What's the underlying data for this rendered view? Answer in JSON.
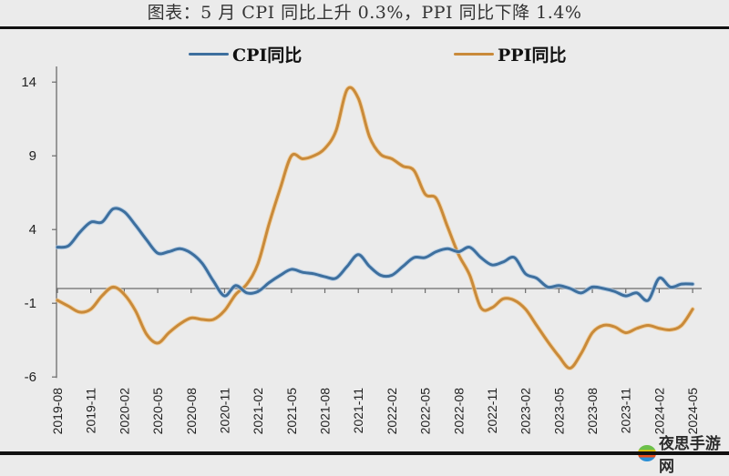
{
  "title": "图表：5 月 CPI 同比上升 0.3%，PPI 同比下降 1.4%",
  "watermark": "夜思手游网",
  "legend": [
    {
      "label": "CPI同比",
      "color": "#3d6f9e"
    },
    {
      "label": "PPI同比",
      "color": "#c98a3a"
    }
  ],
  "chart_data": {
    "type": "line",
    "title": "图表：5 月 CPI 同比上升 0.3%，PPI 同比下降 1.4%",
    "xlabel": "",
    "ylabel": "",
    "ylim": [
      -6,
      14
    ],
    "yticks": [
      14,
      9,
      4,
      -1,
      -6
    ],
    "legend_position": "top",
    "grid": false,
    "x_tick_labels": [
      "2019-08",
      "2019-11",
      "2020-02",
      "2020-05",
      "2020-08",
      "2020-11",
      "2021-02",
      "2021-05",
      "2021-08",
      "2021-11",
      "2022-02",
      "2022-05",
      "2022-08",
      "2022-11",
      "2023-02",
      "2023-05",
      "2023-08",
      "2023-11",
      "2024-02",
      "2024-05"
    ],
    "x": [
      "2019-08",
      "2019-09",
      "2019-10",
      "2019-11",
      "2019-12",
      "2020-01",
      "2020-02",
      "2020-03",
      "2020-04",
      "2020-05",
      "2020-06",
      "2020-07",
      "2020-08",
      "2020-09",
      "2020-10",
      "2020-11",
      "2020-12",
      "2021-01",
      "2021-02",
      "2021-03",
      "2021-04",
      "2021-05",
      "2021-06",
      "2021-07",
      "2021-08",
      "2021-09",
      "2021-10",
      "2021-11",
      "2021-12",
      "2022-01",
      "2022-02",
      "2022-03",
      "2022-04",
      "2022-05",
      "2022-06",
      "2022-07",
      "2022-08",
      "2022-09",
      "2022-10",
      "2022-11",
      "2022-12",
      "2023-01",
      "2023-02",
      "2023-03",
      "2023-04",
      "2023-05",
      "2023-06",
      "2023-07",
      "2023-08",
      "2023-09",
      "2023-10",
      "2023-11",
      "2023-12",
      "2024-01",
      "2024-02",
      "2024-03",
      "2024-04",
      "2024-05"
    ],
    "series": [
      {
        "name": "CPI同比",
        "color": "#3d6f9e",
        "values": [
          2.8,
          2.9,
          3.8,
          4.5,
          4.5,
          5.4,
          5.2,
          4.3,
          3.3,
          2.4,
          2.5,
          2.7,
          2.4,
          1.7,
          0.5,
          -0.5,
          0.2,
          -0.3,
          -0.2,
          0.4,
          0.9,
          1.3,
          1.1,
          1.0,
          0.8,
          0.7,
          1.5,
          2.3,
          1.5,
          0.9,
          0.9,
          1.5,
          2.1,
          2.1,
          2.5,
          2.7,
          2.5,
          2.8,
          2.1,
          1.6,
          1.8,
          2.1,
          1.0,
          0.7,
          0.1,
          0.2,
          0.0,
          -0.3,
          0.1,
          0.0,
          -0.2,
          -0.5,
          -0.3,
          -0.8,
          0.7,
          0.1,
          0.3,
          0.3
        ]
      },
      {
        "name": "PPI同比",
        "color": "#c98a3a",
        "values": [
          -0.8,
          -1.2,
          -1.6,
          -1.4,
          -0.5,
          0.1,
          -0.4,
          -1.5,
          -3.1,
          -3.7,
          -3.0,
          -2.4,
          -2.0,
          -2.1,
          -2.1,
          -1.5,
          -0.4,
          0.3,
          1.7,
          4.4,
          6.8,
          9.0,
          8.8,
          9.0,
          9.5,
          10.7,
          13.5,
          12.9,
          10.3,
          9.1,
          8.8,
          8.3,
          8.0,
          6.4,
          6.1,
          4.2,
          2.3,
          0.9,
          -1.3,
          -1.3,
          -0.7,
          -0.8,
          -1.4,
          -2.5,
          -3.6,
          -4.6,
          -5.4,
          -4.4,
          -3.0,
          -2.5,
          -2.6,
          -3.0,
          -2.7,
          -2.5,
          -2.7,
          -2.8,
          -2.5,
          -1.4
        ]
      }
    ]
  }
}
